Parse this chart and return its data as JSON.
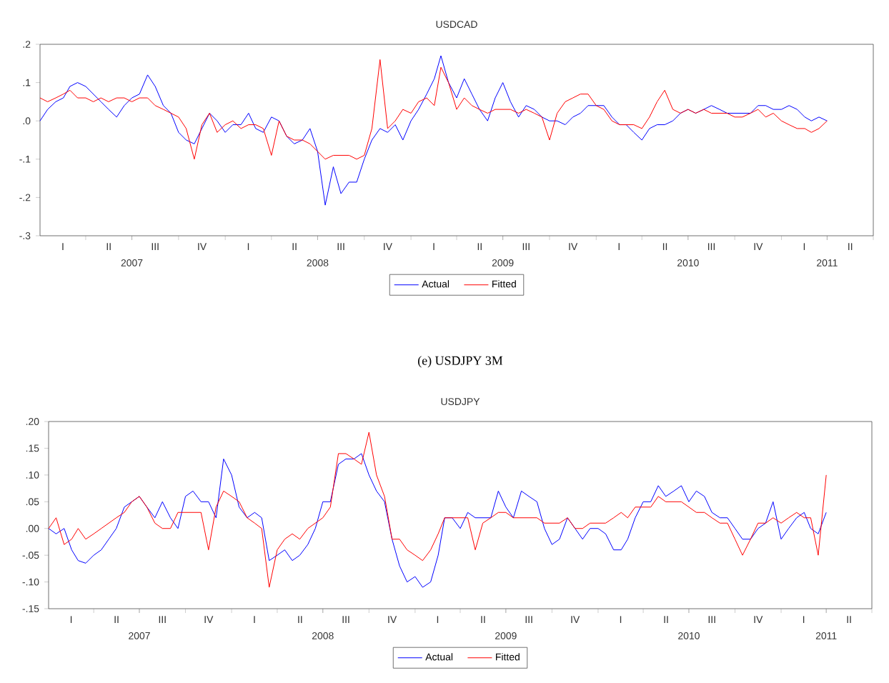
{
  "chart_data": [
    {
      "type": "line",
      "title": "USDCAD",
      "legend": "bottom",
      "x": [
        "2007-01-01",
        "2007-01-16",
        "2007-02-01",
        "2007-02-16",
        "2007-03-01",
        "2007-03-16",
        "2007-04-01",
        "2007-04-16",
        "2007-05-01",
        "2007-05-16",
        "2007-06-01",
        "2007-06-16",
        "2007-07-01",
        "2007-07-16",
        "2007-08-01",
        "2007-08-16",
        "2007-09-01",
        "2007-09-16",
        "2007-10-01",
        "2007-10-16",
        "2007-11-01",
        "2007-11-16",
        "2007-12-01",
        "2007-12-16",
        "2008-01-01",
        "2008-01-16",
        "2008-02-01",
        "2008-02-16",
        "2008-03-01",
        "2008-03-16",
        "2008-04-01",
        "2008-04-16",
        "2008-05-01",
        "2008-05-16",
        "2008-06-01",
        "2008-06-16",
        "2008-07-01",
        "2008-07-16",
        "2008-08-01",
        "2008-08-16",
        "2008-09-01",
        "2008-09-16",
        "2008-10-01",
        "2008-10-16",
        "2008-11-01",
        "2008-11-16",
        "2008-12-01",
        "2008-12-16",
        "2009-01-01",
        "2009-01-16",
        "2009-02-01",
        "2009-02-16",
        "2009-03-01",
        "2009-03-16",
        "2009-04-01",
        "2009-04-16",
        "2009-05-01",
        "2009-05-16",
        "2009-06-01",
        "2009-06-16",
        "2009-07-01",
        "2009-07-16",
        "2009-08-01",
        "2009-08-16",
        "2009-09-01",
        "2009-09-16",
        "2009-10-01",
        "2009-10-16",
        "2009-11-01",
        "2009-11-16",
        "2009-12-01",
        "2009-12-16",
        "2010-01-01",
        "2010-01-16",
        "2010-02-01",
        "2010-02-16",
        "2010-03-01",
        "2010-03-16",
        "2010-04-01",
        "2010-04-16",
        "2010-05-01",
        "2010-05-16",
        "2010-06-01",
        "2010-06-16",
        "2010-07-01",
        "2010-07-16",
        "2010-08-01",
        "2010-08-16",
        "2010-09-01",
        "2010-09-16",
        "2010-10-01",
        "2010-10-16",
        "2010-11-01",
        "2010-11-16",
        "2010-12-01",
        "2010-12-16",
        "2011-01-01",
        "2011-01-16",
        "2011-02-01",
        "2011-02-16",
        "2011-03-01",
        "2011-03-16",
        "2011-04-01"
      ],
      "xlim": [
        "2007-01-01",
        "2011-07-01"
      ],
      "xticks": [
        {
          "value": "2007-07-01",
          "label": "2007"
        },
        {
          "value": "2008-07-01",
          "label": "2008"
        },
        {
          "value": "2009-07-01",
          "label": "2009"
        },
        {
          "value": "2010-07-01",
          "label": "2010"
        },
        {
          "value": "2011-04-01",
          "label": "2011"
        }
      ],
      "annotations": [
        "I",
        "II",
        "III",
        "IV",
        "I",
        "II",
        "III",
        "IV",
        "I",
        "II",
        "III",
        "IV",
        "I",
        "II",
        "III",
        "IV",
        "I",
        "II"
      ],
      "ylim": [
        -0.3,
        0.2
      ],
      "yticks": [
        {
          "value": -0.3,
          "label": "-.3"
        },
        {
          "value": -0.2,
          "label": "-.2"
        },
        {
          "value": -0.1,
          "label": "-.1"
        },
        {
          "value": 0.0,
          "label": ".0"
        },
        {
          "value": 0.1,
          "label": ".1"
        },
        {
          "value": 0.2,
          "label": ".2"
        }
      ],
      "series": [
        {
          "name": "Actual",
          "color": "#0000ff",
          "values": [
            0.0,
            0.03,
            0.05,
            0.06,
            0.09,
            0.1,
            0.09,
            0.07,
            0.05,
            0.03,
            0.01,
            0.04,
            0.06,
            0.07,
            0.12,
            0.09,
            0.04,
            0.02,
            -0.03,
            -0.05,
            -0.06,
            -0.02,
            0.02,
            0.0,
            -0.03,
            -0.01,
            -0.01,
            0.02,
            -0.02,
            -0.03,
            0.01,
            0.0,
            -0.04,
            -0.06,
            -0.05,
            -0.02,
            -0.08,
            -0.22,
            -0.12,
            -0.19,
            -0.16,
            -0.16,
            -0.1,
            -0.05,
            -0.02,
            -0.03,
            -0.01,
            -0.05,
            0.0,
            0.03,
            0.07,
            0.11,
            0.17,
            0.1,
            0.06,
            0.11,
            0.07,
            0.03,
            0.0,
            0.06,
            0.1,
            0.05,
            0.01,
            0.04,
            0.03,
            0.01,
            0.0,
            0.0,
            -0.01,
            0.01,
            0.02,
            0.04,
            0.04,
            0.04,
            0.01,
            -0.01,
            -0.01,
            -0.03,
            -0.05,
            -0.02,
            -0.01,
            -0.01,
            0.0,
            0.02,
            0.03,
            0.02,
            0.03,
            0.04,
            0.03,
            0.02,
            0.02,
            0.02,
            0.02,
            0.04,
            0.04,
            0.03,
            0.03,
            0.04,
            0.03,
            0.01,
            0.0,
            0.01,
            0.0
          ]
        },
        {
          "name": "Fitted",
          "color": "#ff0000",
          "values": [
            0.06,
            0.05,
            0.06,
            0.07,
            0.08,
            0.06,
            0.06,
            0.05,
            0.06,
            0.05,
            0.06,
            0.06,
            0.05,
            0.06,
            0.06,
            0.04,
            0.03,
            0.02,
            0.01,
            -0.02,
            -0.1,
            -0.01,
            0.02,
            -0.03,
            -0.01,
            0.0,
            -0.02,
            -0.01,
            -0.01,
            -0.02,
            -0.09,
            0.0,
            -0.04,
            -0.05,
            -0.05,
            -0.06,
            -0.08,
            -0.1,
            -0.09,
            -0.09,
            -0.09,
            -0.1,
            -0.09,
            -0.02,
            0.16,
            -0.02,
            0.0,
            0.03,
            0.02,
            0.05,
            0.06,
            0.04,
            0.14,
            0.1,
            0.03,
            0.06,
            0.04,
            0.03,
            0.02,
            0.03,
            0.03,
            0.03,
            0.02,
            0.03,
            0.02,
            0.01,
            -0.05,
            0.02,
            0.05,
            0.06,
            0.07,
            0.07,
            0.04,
            0.03,
            0.0,
            -0.01,
            -0.01,
            -0.01,
            -0.02,
            0.01,
            0.05,
            0.08,
            0.03,
            0.02,
            0.03,
            0.02,
            0.03,
            0.02,
            0.02,
            0.02,
            0.01,
            0.01,
            0.02,
            0.03,
            0.01,
            0.02,
            0.0,
            -0.01,
            -0.02,
            -0.02,
            -0.03,
            -0.02,
            0.0
          ]
        }
      ]
    },
    {
      "type": "line",
      "title": "USDJPY",
      "subtitle": "(e) USDJPY 3M",
      "legend": "bottom",
      "x": [
        "2007-01-01",
        "2007-01-16",
        "2007-02-01",
        "2007-02-16",
        "2007-03-01",
        "2007-03-16",
        "2007-04-01",
        "2007-04-16",
        "2007-05-01",
        "2007-05-16",
        "2007-06-01",
        "2007-06-16",
        "2007-07-01",
        "2007-07-16",
        "2007-08-01",
        "2007-08-16",
        "2007-09-01",
        "2007-09-16",
        "2007-10-01",
        "2007-10-16",
        "2007-11-01",
        "2007-11-16",
        "2007-12-01",
        "2007-12-16",
        "2008-01-01",
        "2008-01-16",
        "2008-02-01",
        "2008-02-16",
        "2008-03-01",
        "2008-03-16",
        "2008-04-01",
        "2008-04-16",
        "2008-05-01",
        "2008-05-16",
        "2008-06-01",
        "2008-06-16",
        "2008-07-01",
        "2008-07-16",
        "2008-08-01",
        "2008-08-16",
        "2008-09-01",
        "2008-09-16",
        "2008-10-01",
        "2008-10-16",
        "2008-11-01",
        "2008-11-16",
        "2008-12-01",
        "2008-12-16",
        "2009-01-01",
        "2009-01-16",
        "2009-02-01",
        "2009-02-16",
        "2009-03-01",
        "2009-03-16",
        "2009-04-01",
        "2009-04-16",
        "2009-05-01",
        "2009-05-16",
        "2009-06-01",
        "2009-06-16",
        "2009-07-01",
        "2009-07-16",
        "2009-08-01",
        "2009-08-16",
        "2009-09-01",
        "2009-09-16",
        "2009-10-01",
        "2009-10-16",
        "2009-11-01",
        "2009-11-16",
        "2009-12-01",
        "2009-12-16",
        "2010-01-01",
        "2010-01-16",
        "2010-02-01",
        "2010-02-16",
        "2010-03-01",
        "2010-03-16",
        "2010-04-01",
        "2010-04-16",
        "2010-05-01",
        "2010-05-16",
        "2010-06-01",
        "2010-06-16",
        "2010-07-01",
        "2010-07-16",
        "2010-08-01",
        "2010-08-16",
        "2010-09-01",
        "2010-09-16",
        "2010-10-01",
        "2010-10-16",
        "2010-11-01",
        "2010-11-16",
        "2010-12-01",
        "2010-12-16",
        "2011-01-01",
        "2011-01-16",
        "2011-02-01",
        "2011-02-16",
        "2011-03-01",
        "2011-03-16",
        "2011-04-01"
      ],
      "xlim": [
        "2007-01-01",
        "2011-07-01"
      ],
      "xticks": [
        {
          "value": "2007-07-01",
          "label": "2007"
        },
        {
          "value": "2008-07-01",
          "label": "2008"
        },
        {
          "value": "2009-07-01",
          "label": "2009"
        },
        {
          "value": "2010-07-01",
          "label": "2010"
        },
        {
          "value": "2011-04-01",
          "label": "2011"
        }
      ],
      "annotations": [
        "I",
        "II",
        "III",
        "IV",
        "I",
        "II",
        "III",
        "IV",
        "I",
        "II",
        "III",
        "IV",
        "I",
        "II",
        "III",
        "IV",
        "I",
        "II"
      ],
      "ylim": [
        -0.15,
        0.2
      ],
      "yticks": [
        {
          "value": -0.15,
          "label": "-.15"
        },
        {
          "value": -0.1,
          "label": "-.10"
        },
        {
          "value": -0.05,
          "label": "-.05"
        },
        {
          "value": 0.0,
          "label": ".00"
        },
        {
          "value": 0.05,
          "label": ".05"
        },
        {
          "value": 0.1,
          "label": ".10"
        },
        {
          "value": 0.15,
          "label": ".15"
        },
        {
          "value": 0.2,
          "label": ".20"
        }
      ],
      "series": [
        {
          "name": "Actual",
          "color": "#0000ff",
          "values": [
            0.0,
            -0.01,
            0.0,
            -0.04,
            -0.06,
            -0.065,
            -0.05,
            -0.04,
            -0.02,
            0.0,
            0.04,
            0.05,
            0.06,
            0.04,
            0.02,
            0.05,
            0.02,
            0.0,
            0.06,
            0.07,
            0.05,
            0.05,
            0.02,
            0.13,
            0.1,
            0.04,
            0.02,
            0.03,
            0.02,
            -0.06,
            -0.05,
            -0.04,
            -0.06,
            -0.05,
            -0.03,
            0.0,
            0.05,
            0.05,
            0.12,
            0.13,
            0.13,
            0.14,
            0.1,
            0.07,
            0.05,
            -0.02,
            -0.07,
            -0.1,
            -0.09,
            -0.11,
            -0.1,
            -0.05,
            0.02,
            0.02,
            0.0,
            0.03,
            0.02,
            0.02,
            0.02,
            0.07,
            0.04,
            0.02,
            0.07,
            0.06,
            0.05,
            0.0,
            -0.03,
            -0.02,
            0.02,
            0.0,
            -0.02,
            0.0,
            0.0,
            -0.01,
            -0.04,
            -0.04,
            -0.02,
            0.02,
            0.05,
            0.05,
            0.08,
            0.06,
            0.07,
            0.08,
            0.05,
            0.07,
            0.06,
            0.03,
            0.02,
            0.02,
            0.0,
            -0.02,
            -0.02,
            0.0,
            0.01,
            0.05,
            -0.02,
            0.0,
            0.02,
            0.03,
            0.0,
            -0.01,
            0.03
          ]
        },
        {
          "name": "Fitted",
          "color": "#ff0000",
          "values": [
            0.0,
            0.02,
            -0.03,
            -0.02,
            0.0,
            -0.02,
            -0.01,
            0.0,
            0.01,
            0.02,
            0.03,
            0.05,
            0.06,
            0.04,
            0.01,
            0.0,
            0.0,
            0.03,
            0.03,
            0.03,
            0.03,
            -0.04,
            0.04,
            0.07,
            0.06,
            0.05,
            0.02,
            0.01,
            0.0,
            -0.11,
            -0.04,
            -0.02,
            -0.01,
            -0.02,
            0.0,
            0.01,
            0.02,
            0.04,
            0.14,
            0.14,
            0.13,
            0.12,
            0.18,
            0.1,
            0.06,
            -0.02,
            -0.02,
            -0.04,
            -0.05,
            -0.06,
            -0.04,
            -0.01,
            0.02,
            0.02,
            0.02,
            0.02,
            -0.04,
            0.01,
            0.02,
            0.03,
            0.03,
            0.02,
            0.02,
            0.02,
            0.02,
            0.01,
            0.01,
            0.01,
            0.02,
            0.0,
            0.0,
            0.01,
            0.01,
            0.01,
            0.02,
            0.03,
            0.02,
            0.04,
            0.04,
            0.04,
            0.06,
            0.05,
            0.05,
            0.05,
            0.04,
            0.03,
            0.03,
            0.02,
            0.01,
            0.01,
            -0.02,
            -0.05,
            -0.02,
            0.01,
            0.01,
            0.02,
            0.01,
            0.02,
            0.03,
            0.02,
            0.02,
            -0.05,
            0.1
          ]
        }
      ]
    }
  ]
}
